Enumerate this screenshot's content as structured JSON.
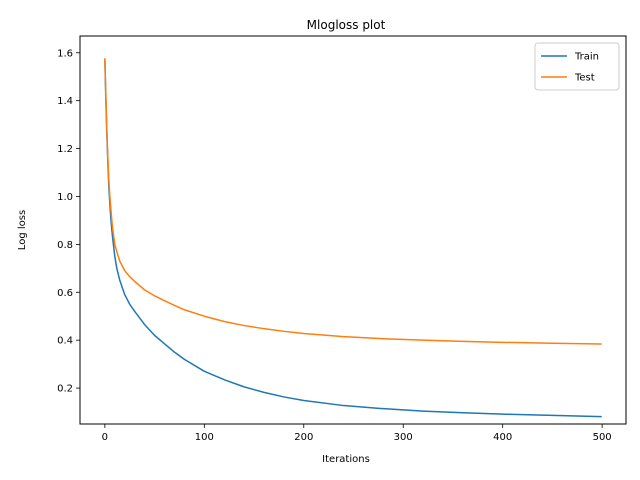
{
  "chart_data": {
    "type": "line",
    "title": "Mlogloss plot",
    "xlabel": "Iterations",
    "ylabel": "Log loss",
    "xlim": [
      -25,
      524
    ],
    "ylim": [
      0.05,
      1.67
    ],
    "xticks": [
      0,
      100,
      200,
      300,
      400,
      500
    ],
    "yticks": [
      0.2,
      0.4,
      0.6,
      0.8,
      1.0,
      1.2,
      1.4,
      1.6
    ],
    "ytick_labels": [
      "0.2",
      "0.4",
      "0.6",
      "0.8",
      "1.0",
      "1.2",
      "1.4",
      "1.6"
    ],
    "grid": false,
    "legend_position": "upper-right",
    "x": [
      0,
      1,
      2,
      3,
      4,
      5,
      6,
      7,
      8,
      10,
      12,
      15,
      20,
      25,
      30,
      40,
      50,
      60,
      70,
      80,
      100,
      120,
      140,
      160,
      180,
      200,
      240,
      280,
      320,
      360,
      400,
      450,
      499
    ],
    "series": [
      {
        "name": "Train",
        "color": "#1f77b4",
        "values": [
          1.57,
          1.4,
          1.26,
          1.14,
          1.04,
          0.97,
          0.91,
          0.86,
          0.82,
          0.75,
          0.7,
          0.65,
          0.59,
          0.55,
          0.52,
          0.465,
          0.42,
          0.385,
          0.35,
          0.32,
          0.27,
          0.235,
          0.205,
          0.182,
          0.163,
          0.148,
          0.127,
          0.114,
          0.104,
          0.097,
          0.091,
          0.086,
          0.081
        ]
      },
      {
        "name": "Test",
        "color": "#ff7f0e",
        "values": [
          1.575,
          1.42,
          1.28,
          1.16,
          1.07,
          1.0,
          0.95,
          0.9,
          0.86,
          0.8,
          0.77,
          0.73,
          0.69,
          0.665,
          0.645,
          0.61,
          0.585,
          0.565,
          0.545,
          0.527,
          0.5,
          0.478,
          0.461,
          0.448,
          0.437,
          0.428,
          0.415,
          0.406,
          0.4,
          0.395,
          0.391,
          0.387,
          0.384
        ]
      }
    ]
  }
}
